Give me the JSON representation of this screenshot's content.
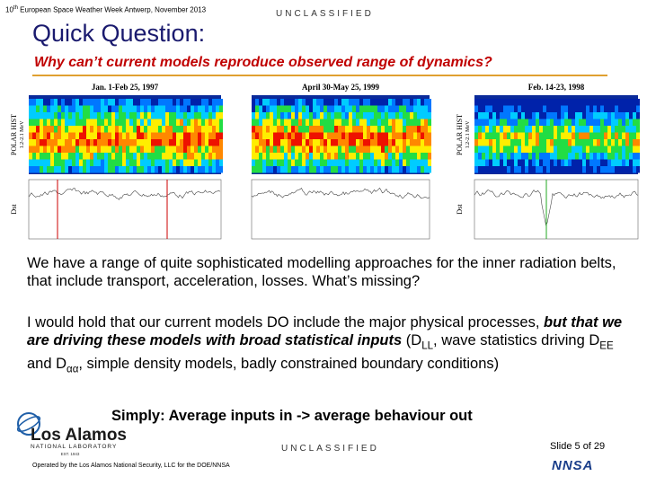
{
  "header": {
    "conference_number": "10",
    "conference_suffix": "th",
    "conference_rest": "European Space Weather Week Antwerp, November 2013",
    "classification": "UNCLASSIFIED"
  },
  "title": "Quick Question:",
  "subtitle": "Why can’t current models reproduce observed range of dynamics?",
  "figure": {
    "panels": [
      {
        "title": "Jan. 1-Feb 25, 1997",
        "top_label_1": "POLAR HIST",
        "top_label_2": "1.2-2.1 MeV",
        "bottom_label": "Dst"
      },
      {
        "title": "April 30-May 25, 1999"
      },
      {
        "title": "Feb. 14-23, 1998",
        "top_label_1": "POLAR HIST",
        "top_label_2": "1.2-2.1 MeV",
        "bottom_label": "Dst"
      }
    ]
  },
  "body": {
    "paragraph1": "We have a range of quite sophisticated modelling approaches for the inner radiation belts, that include transport, acceleration, losses. What’s missing?",
    "paragraph2": [
      "I would hold that our current models DO include the major physical processes, ",
      "but that we are driving these models with broad statistical inputs",
      " (D",
      "LL",
      ", wave statistics driving D",
      "EE",
      " and D",
      "αα",
      ", simple density models, badly constrained boundary conditions)"
    ],
    "conclusion": "Simply: Average inputs in -> average behaviour out"
  },
  "footer": {
    "logo_main": "Los Alamos",
    "logo_sub": "NATIONAL LABORATORY",
    "logo_est": "EST. 1943",
    "operated_by": "Operated by the Los Alamos National Security, LLC for the DOE/NNSA",
    "classification": "UNCLASSIFIED",
    "slide_number": "Slide 5  of 29",
    "nnsa": "NNSA"
  }
}
